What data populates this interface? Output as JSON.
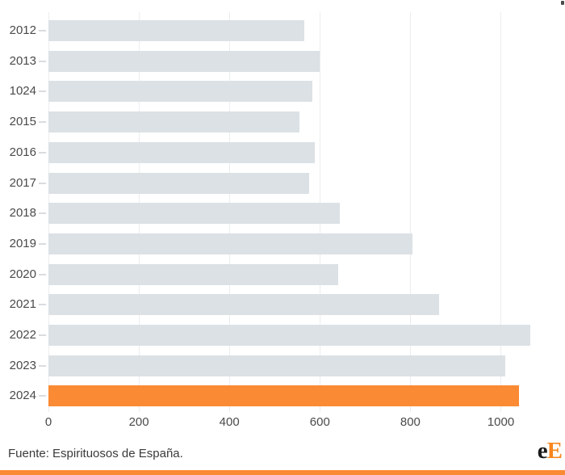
{
  "chart_data": {
    "type": "bar",
    "orientation": "horizontal",
    "title": "",
    "xlabel": "",
    "ylabel": "",
    "categories": [
      "2012",
      "2013",
      "1024",
      "2015",
      "2016",
      "2017",
      "2018",
      "2019",
      "2020",
      "2021",
      "2022",
      "2023",
      "2024"
    ],
    "values": [
      565,
      600,
      583,
      555,
      588,
      576,
      644,
      805,
      641,
      864,
      1066,
      1010,
      1041
    ],
    "highlight_index": 12,
    "x_ticks": [
      0,
      200,
      400,
      600,
      800,
      1000
    ],
    "xlim": [
      0,
      1124
    ],
    "grid": true,
    "legend": "none",
    "bar_color": "#dce1e5",
    "highlight_color": "#fb8a34"
  },
  "footer": {
    "source": "Fuente: Espirituosos de España.",
    "logo": {
      "part1": "e",
      "part2": "E",
      "part1_color": "#1a1a1a",
      "part2_color": "#f7871f"
    }
  },
  "colors": {
    "accent_orange": "#fb8a34",
    "bar_gray": "#dce1e5",
    "gridline": "#ebedef",
    "axis_text": "#4a4a4a"
  }
}
